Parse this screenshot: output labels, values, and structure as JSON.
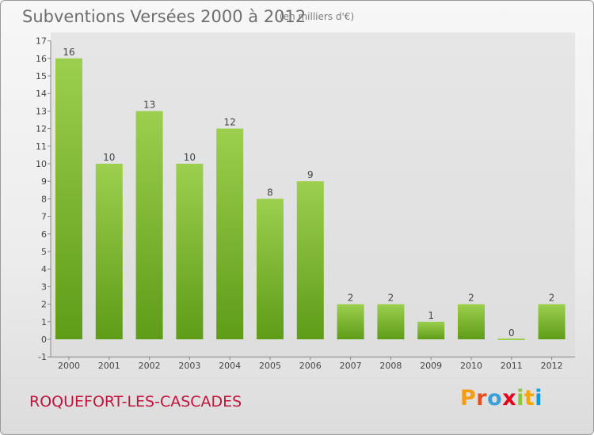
{
  "header": {
    "title": "Subventions Versées 2000 à 2012",
    "subtitle": "(en milliers d'€)"
  },
  "footer": {
    "commune": "ROQUEFORT-LES-CASCADES",
    "logo": {
      "letters": [
        "P",
        "r",
        "o",
        "x",
        "i",
        "t",
        "i"
      ],
      "colors": [
        "#f39c12",
        "#e84e1b",
        "#3aa0d8",
        "#e2001a",
        "#8dc63f",
        "#f7a600",
        "#00a0e0"
      ]
    }
  },
  "chart_data": {
    "type": "bar",
    "categories": [
      "2000",
      "2001",
      "2002",
      "2003",
      "2004",
      "2005",
      "2006",
      "2007",
      "2008",
      "2009",
      "2010",
      "2011",
      "2012"
    ],
    "values": [
      16,
      10,
      13,
      10,
      12,
      8,
      9,
      2,
      2,
      1,
      2,
      0,
      2
    ],
    "data_labels": [
      "16",
      "10",
      "13",
      "10",
      "12",
      "8",
      "9",
      "2",
      "2",
      "1",
      "2",
      "0",
      "2"
    ],
    "y_ticks": [
      "-1",
      "0",
      "1",
      "2",
      "3",
      "4",
      "5",
      "6",
      "7",
      "8",
      "9",
      "10",
      "11",
      "12",
      "13",
      "14",
      "15",
      "16",
      "17"
    ],
    "ylim": [
      -1,
      17
    ],
    "title": "Subventions Versées 2000 à 2012",
    "xlabel": "",
    "ylabel": "",
    "grid": false,
    "legend": "none",
    "colors": {
      "bar_top": "#9ccf4e",
      "bar_bottom": "#5e9c18",
      "plot_bg": "#e3e3e3"
    }
  }
}
